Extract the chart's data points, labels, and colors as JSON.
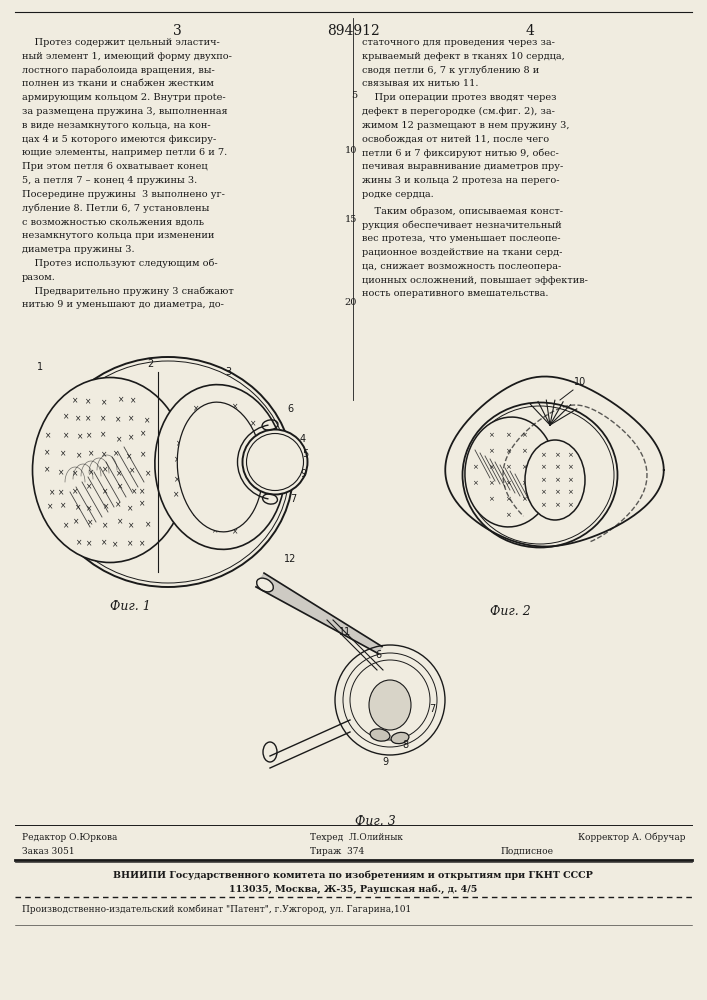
{
  "page_number_left": "3",
  "patent_number": "894912",
  "page_number_right": "4",
  "background_color": "#f0ece0",
  "text_color": "#1a1a1a",
  "left_column_lines": [
    "    Протез содержит цельный эластич-",
    "ный элемент 1, имеющий форму двухпо-",
    "лостного параболоида вращения, вы-",
    "полнен из ткани и снабжен жестким",
    "армирующим кольцом 2. Внутри прote-",
    "за размещена пружина 3, выполненная",
    "в виде незамкнутого кольца, на кон-",
    "цах 4 и 5 которого имеются фиксиру-",
    "ющие элементы, например петли 6 и 7.",
    "При этом петля 6 охватывает конец",
    "5, а петля 7 – конец 4 пружины 3.",
    "Посередине пружины  3 выполнено уг-",
    "лубление 8. Петли 6, 7 установлены",
    "с возможностью скольжения вдоль",
    "незамкнутого кольца при изменении",
    "диаметра пружины 3.",
    "    Протез используют следующим об-",
    "разом.",
    "    Предварительно пружину 3 снабжают",
    "нитью 9 и уменьшают до диаметра, до-"
  ],
  "right_col_top": [
    "статочного для проведения через за-",
    "крываемый дефект в тканях 10 сердца,",
    "сводя петли 6, 7 к углублению 8 и",
    "связывая их нитью 11."
  ],
  "right_col_5": [
    "    При операции протез вводят через",
    "дефект в перегородке (см.фиг. 2), за-",
    "жимом 12 размещают в нем пружину 3,",
    "освобождая от нитей 11, после чего"
  ],
  "right_col_10": [
    "петли 6 и 7 фиксируют нитью 9, обес-",
    "печивая выравнивание диаметров пру-",
    "жины 3 и кольца 2 протеза на перего-",
    "родке сердца."
  ],
  "right_col_15": [
    "    Таким образом, описываемая конст-",
    "рукция обеспечивает незначительный",
    "вес протеза, что уменьшает послеопе-",
    "рационное воздействие на ткани серд-",
    "ца, снижает возможность послеопера-",
    "ционных осложнений, повышает эффектив-",
    "ность оперативного вмешательства."
  ],
  "footer_line1_left": "Редактор О.Юркова",
  "footer_line1_mid": "Техред  Л.Олийнык",
  "footer_line1_right": "Корректор А. Обручар",
  "footer_line2_left": "Заказ 3051",
  "footer_line2_mid": "Тираж  374",
  "footer_line2_right": "Подписное",
  "footer_line3": "ВНИИПИ Государственного комитета по изобретениям и открытиям при ГКНТ СССР",
  "footer_line4": "113035, Москва, Ж-35, Раушская наб., д. 4/5",
  "footer_line5": "Производственно-издательский комбинат \"Патент\", г.Ужгород, ул. Гагарина,101",
  "fig1_label": "Фuг. 1",
  "fig2_label": "Фuг. 2",
  "fig3_label": "Фuг. 3"
}
